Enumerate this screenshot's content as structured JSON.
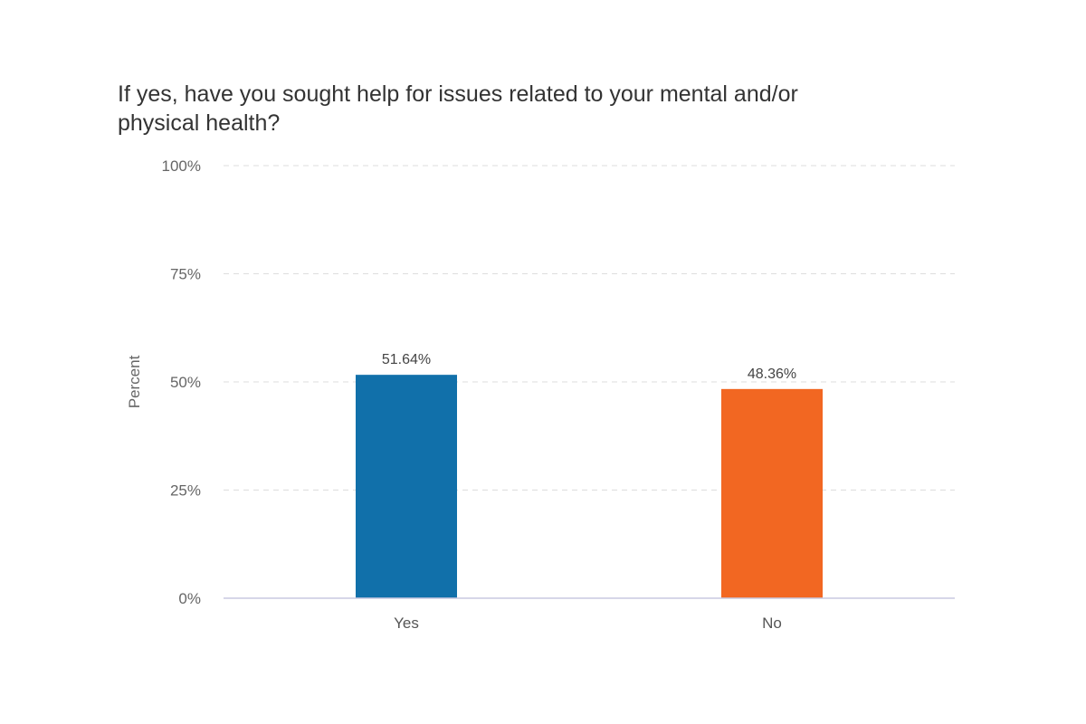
{
  "chart_data": {
    "type": "bar",
    "title": "If yes, have you sought help for issues related to your mental and/or physical health?",
    "ylabel": "Percent",
    "xlabel": "",
    "categories": [
      "Yes",
      "No"
    ],
    "values": [
      51.64,
      48.36
    ],
    "data_labels": [
      "51.64%",
      "48.36%"
    ],
    "colors": [
      "#1170aa",
      "#f26722"
    ],
    "ylim": [
      0,
      100
    ],
    "yticks": [
      0,
      25,
      50,
      75,
      100
    ],
    "ytick_labels": [
      "0%",
      "25%",
      "50%",
      "75%",
      "100%"
    ],
    "grid": true,
    "legend": "none"
  }
}
